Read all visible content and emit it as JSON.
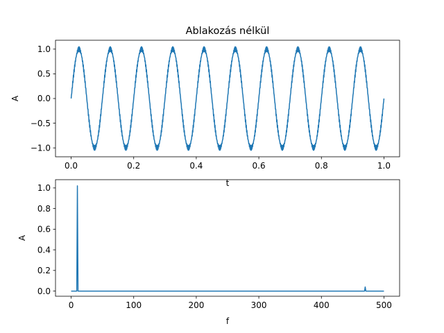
{
  "figure": {
    "line_color": "#1f77b4"
  },
  "chart_data": [
    {
      "type": "line",
      "title": "Ablakozás nélkül",
      "xlabel": "t",
      "ylabel": "A",
      "xlim": [
        -0.05,
        1.05
      ],
      "ylim": [
        -1.18,
        1.18
      ],
      "xticks": [
        0.0,
        0.2,
        0.4,
        0.6,
        0.8,
        1.0
      ],
      "xtick_labels": [
        "0.0",
        "0.2",
        "0.4",
        "0.6",
        "0.8",
        "1.0"
      ],
      "yticks": [
        -1.0,
        -0.5,
        0.0,
        0.5,
        1.0
      ],
      "ytick_labels": [
        "−1.0",
        "−0.5",
        "0.0",
        "0.5",
        "1.0"
      ],
      "grid": false,
      "series": [
        {
          "signal": "sine",
          "frequency": 10,
          "amplitude": 1.0,
          "x_start": 0.0,
          "x_end": 1.0,
          "ripple_amplitude": 0.05,
          "ripple_frequency": 470
        }
      ]
    },
    {
      "type": "line",
      "title": "",
      "xlabel": "f",
      "ylabel": "A",
      "xlim": [
        -25,
        525
      ],
      "ylim": [
        -0.05,
        1.08
      ],
      "xticks": [
        0,
        100,
        200,
        300,
        400,
        500
      ],
      "xtick_labels": [
        "0",
        "100",
        "200",
        "300",
        "400",
        "500"
      ],
      "yticks": [
        0.0,
        0.2,
        0.4,
        0.6,
        0.8,
        1.0
      ],
      "ytick_labels": [
        "0.0",
        "0.2",
        "0.4",
        "0.6",
        "0.8",
        "1.0"
      ],
      "grid": false,
      "series": [
        {
          "x": [
            0,
            9,
            10,
            11,
            12,
            469,
            470,
            471,
            500
          ],
          "y": [
            0.0,
            0.0,
            1.02,
            0.0,
            0.0,
            0.0,
            0.04,
            0.0,
            0.0
          ]
        }
      ]
    }
  ]
}
